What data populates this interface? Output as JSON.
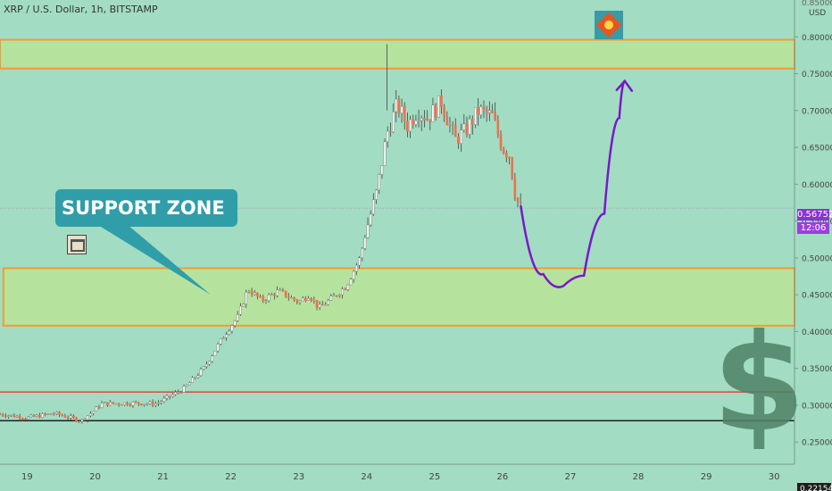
{
  "header": {
    "symbol_line": "XRP / U.S. Dollar, 1h, BITSTAMP"
  },
  "callout": {
    "label": "SUPPORT ZONE"
  },
  "price_axis": {
    "unit": "USD",
    "top_cut_label": "0.85000",
    "bottom_cut_label": "0.22154",
    "last_price": "0.56752",
    "countdown": "12:06"
  },
  "colors": {
    "background": "#a2dcc2",
    "zone_fill": "#b5e39e",
    "zone_border": "#f39a33",
    "candle_up": "#ffffff",
    "candle_down": "#f0704a",
    "wick": "#444444",
    "projection": "#7b18c8",
    "red_line": "#e0453c",
    "black_line": "#222222",
    "last_price_tag": "#8a33d8",
    "countdown_tag": "#9c3ee0"
  },
  "chart_data": {
    "type": "candlestick",
    "title": "XRP / U.S. Dollar, 1h, BITSTAMP",
    "ylabel": "USD",
    "xlim": [
      18.6,
      30.3
    ],
    "ylim": [
      0.22,
      0.85
    ],
    "x_tick_labels": [
      "19",
      "20",
      "21",
      "22",
      "23",
      "24",
      "25",
      "26",
      "27",
      "28",
      "29",
      "30"
    ],
    "y_tick_labels": [
      "0.80000",
      "0.75000",
      "0.70000",
      "0.65000",
      "0.60000",
      "0.55000",
      "0.50000",
      "0.45000",
      "0.40000",
      "0.35000",
      "0.30000",
      "0.25000"
    ],
    "price_path": [
      [
        18.6,
        0.288
      ],
      [
        19.0,
        0.283
      ],
      [
        19.4,
        0.289
      ],
      [
        19.8,
        0.279
      ],
      [
        20.1,
        0.302
      ],
      [
        20.6,
        0.303
      ],
      [
        20.9,
        0.302
      ],
      [
        21.3,
        0.322
      ],
      [
        21.6,
        0.35
      ],
      [
        21.9,
        0.395
      ],
      [
        22.1,
        0.42
      ],
      [
        22.25,
        0.458
      ],
      [
        22.45,
        0.442
      ],
      [
        22.7,
        0.455
      ],
      [
        23.0,
        0.44
      ],
      [
        23.15,
        0.45
      ],
      [
        23.3,
        0.432
      ],
      [
        23.5,
        0.446
      ],
      [
        23.7,
        0.462
      ],
      [
        23.9,
        0.5
      ],
      [
        24.0,
        0.54
      ],
      [
        24.15,
        0.59
      ],
      [
        24.3,
        0.67
      ],
      [
        24.45,
        0.708
      ],
      [
        24.6,
        0.68
      ],
      [
        24.75,
        0.7
      ],
      [
        24.9,
        0.69
      ],
      [
        25.1,
        0.712
      ],
      [
        25.3,
        0.66
      ],
      [
        25.45,
        0.672
      ],
      [
        25.65,
        0.7
      ],
      [
        25.85,
        0.692
      ],
      [
        26.0,
        0.65
      ],
      [
        26.1,
        0.64
      ],
      [
        26.2,
        0.58
      ],
      [
        26.27,
        0.568
      ]
    ],
    "horizontal_zones": [
      {
        "low": 0.757,
        "high": 0.796
      },
      {
        "low": 0.408,
        "high": 0.486
      }
    ],
    "horizontal_lines": [
      {
        "price": 0.318,
        "color": "red"
      },
      {
        "price": 0.279,
        "color": "black"
      }
    ],
    "last_price": 0.56752,
    "projection_path": [
      [
        26.27,
        0.57
      ],
      [
        26.6,
        0.478
      ],
      [
        26.9,
        0.462
      ],
      [
        27.2,
        0.476
      ],
      [
        27.5,
        0.56
      ],
      [
        27.72,
        0.69
      ],
      [
        27.8,
        0.74
      ]
    ]
  }
}
